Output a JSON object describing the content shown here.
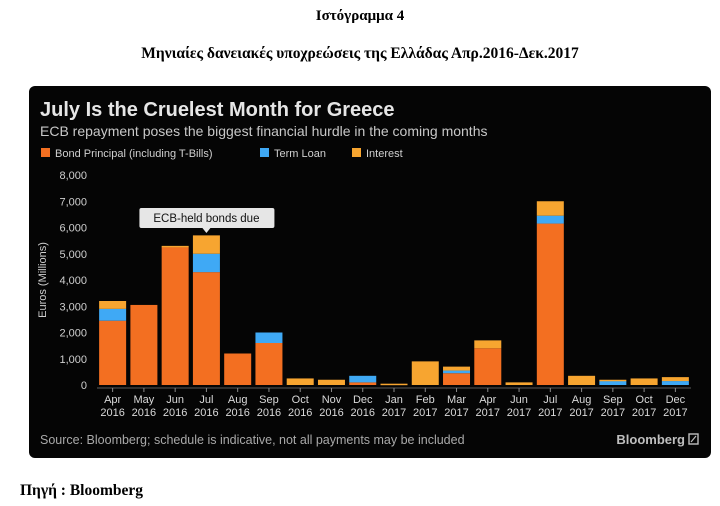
{
  "document": {
    "figure_number": "Ιστόγραμμα 4",
    "figure_title": "Μηνιαίες δανειακές υποχρεώσεις της Ελλάδας Απρ.2016-Δεκ.2017",
    "source_label": "Πηγή : Bloomberg"
  },
  "colors": {
    "background": "#050505",
    "bond_principal": "#f36f21",
    "term_loan": "#3fa9f5",
    "interest": "#f7a530",
    "text": "#d9d9d9",
    "muted": "#a9a9a9"
  },
  "chart_data": {
    "type": "bar",
    "stacked": true,
    "title": "July Is the Cruelest Month for Greece",
    "subtitle": "ECB repayment poses the biggest financial hurdle in the coming months",
    "ylabel": "Euros (Millions)",
    "xlabel": "",
    "ylim": [
      0,
      8000
    ],
    "yticks": [
      "0",
      "1,000",
      "2,000",
      "3,000",
      "4,000",
      "5,000",
      "6,000",
      "7,000",
      "8,000"
    ],
    "ytick_values": [
      0,
      1000,
      2000,
      3000,
      4000,
      5000,
      6000,
      7000,
      8000
    ],
    "grid": false,
    "legend_position": "top-left",
    "categories": [
      [
        "Apr",
        "2016"
      ],
      [
        "May",
        "2016"
      ],
      [
        "Jun",
        "2016"
      ],
      [
        "Jul",
        "2016"
      ],
      [
        "Aug",
        "2016"
      ],
      [
        "Sep",
        "2016"
      ],
      [
        "Oct",
        "2016"
      ],
      [
        "Nov",
        "2016"
      ],
      [
        "Dec",
        "2016"
      ],
      [
        "Jan",
        "2017"
      ],
      [
        "Feb",
        "2017"
      ],
      [
        "Mar",
        "2017"
      ],
      [
        "Apr",
        "2017"
      ],
      [
        "Jun",
        "2017"
      ],
      [
        "Jul",
        "2017"
      ],
      [
        "Aug",
        "2017"
      ],
      [
        "Sep",
        "2017"
      ],
      [
        "Oct",
        "2017"
      ],
      [
        "Dec",
        "2017"
      ]
    ],
    "series": [
      {
        "name": "Bond Principal (including T-Bills)",
        "color_key": "bond_principal",
        "values": [
          2450,
          3050,
          5250,
          4300,
          1200,
          1600,
          0,
          0,
          100,
          0,
          0,
          450,
          1400,
          0,
          6150,
          0,
          0,
          0,
          0
        ]
      },
      {
        "name": "Term Loan",
        "color_key": "term_loan",
        "values": [
          450,
          0,
          0,
          700,
          0,
          400,
          0,
          0,
          250,
          0,
          0,
          100,
          0,
          0,
          300,
          0,
          150,
          0,
          150
        ]
      },
      {
        "name": "Interest",
        "color_key": "interest",
        "values": [
          300,
          0,
          50,
          700,
          0,
          0,
          250,
          200,
          0,
          50,
          900,
          150,
          300,
          100,
          550,
          350,
          50,
          250,
          150
        ]
      }
    ],
    "annotation": {
      "text": "ECB-held bonds due",
      "category_index": 3
    },
    "footer": "Source: Bloomberg; schedule is indicative, not all payments may be included",
    "brand": "Bloomberg"
  }
}
